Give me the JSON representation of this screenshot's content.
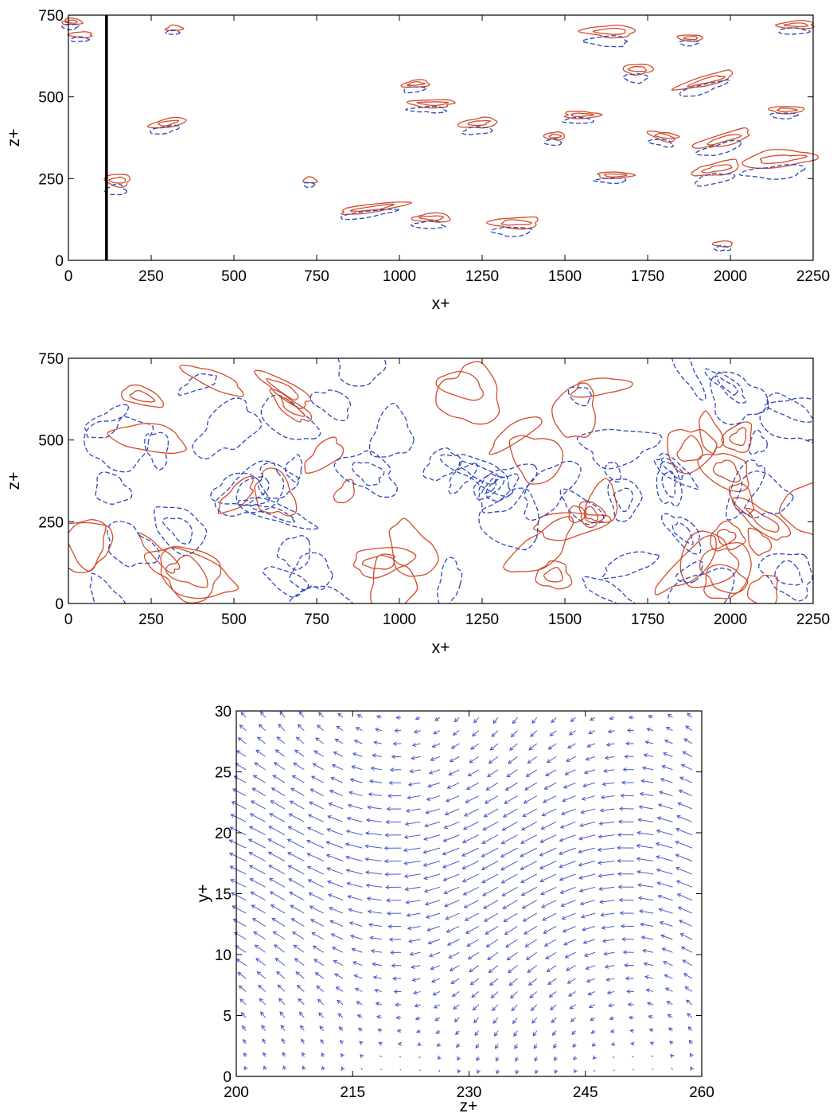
{
  "chart_data": [
    {
      "type": "contour",
      "panel": "top",
      "xlabel": "x+",
      "ylabel": "z+",
      "xlim": [
        0,
        2250
      ],
      "ylim": [
        0,
        750
      ],
      "xticks": [
        "0",
        "250",
        "500",
        "750",
        "1000",
        "1250",
        "1500",
        "1750",
        "2000",
        "2250"
      ],
      "yticks": [
        "0",
        "250",
        "500",
        "750"
      ],
      "series": [
        {
          "style": "solid",
          "color": "#d24b2a"
        },
        {
          "style": "dashed",
          "color": "#2b46b8"
        }
      ],
      "marker_line": {
        "x": 115,
        "color": "#000000"
      },
      "structures": [
        {
          "x": 10,
          "z": 730,
          "len": 60,
          "w": 10,
          "ang": 0
        },
        {
          "x": 40,
          "z": 690,
          "len": 70,
          "w": 8,
          "ang": 0
        },
        {
          "x": 150,
          "z": 245,
          "len": 80,
          "w": 28,
          "ang": 0
        },
        {
          "x": 300,
          "z": 420,
          "len": 110,
          "w": 16,
          "ang": 10
        },
        {
          "x": 320,
          "z": 710,
          "len": 50,
          "w": 6,
          "ang": 0
        },
        {
          "x": 730,
          "z": 245,
          "len": 40,
          "w": 8,
          "ang": 0
        },
        {
          "x": 920,
          "z": 160,
          "len": 210,
          "w": 14,
          "ang": 8
        },
        {
          "x": 1050,
          "z": 540,
          "len": 80,
          "w": 12,
          "ang": 5
        },
        {
          "x": 1100,
          "z": 480,
          "len": 140,
          "w": 14,
          "ang": 0
        },
        {
          "x": 1100,
          "z": 130,
          "len": 120,
          "w": 18,
          "ang": 0
        },
        {
          "x": 1240,
          "z": 420,
          "len": 110,
          "w": 20,
          "ang": 5
        },
        {
          "x": 1350,
          "z": 115,
          "len": 150,
          "w": 24,
          "ang": 0
        },
        {
          "x": 1470,
          "z": 380,
          "len": 60,
          "w": 14,
          "ang": 0
        },
        {
          "x": 1550,
          "z": 445,
          "len": 110,
          "w": 12,
          "ang": 0
        },
        {
          "x": 1640,
          "z": 700,
          "len": 150,
          "w": 28,
          "ang": 0
        },
        {
          "x": 1650,
          "z": 260,
          "len": 110,
          "w": 10,
          "ang": 0
        },
        {
          "x": 1720,
          "z": 585,
          "len": 90,
          "w": 24,
          "ang": 0
        },
        {
          "x": 1800,
          "z": 380,
          "len": 90,
          "w": 16,
          "ang": -10
        },
        {
          "x": 1880,
          "z": 680,
          "len": 70,
          "w": 10,
          "ang": 0
        },
        {
          "x": 1930,
          "z": 550,
          "len": 180,
          "w": 22,
          "ang": 15
        },
        {
          "x": 1980,
          "z": 370,
          "len": 170,
          "w": 26,
          "ang": 15
        },
        {
          "x": 1960,
          "z": 280,
          "len": 150,
          "w": 30,
          "ang": 10
        },
        {
          "x": 2150,
          "z": 310,
          "len": 220,
          "w": 40,
          "ang": 5
        },
        {
          "x": 2170,
          "z": 460,
          "len": 100,
          "w": 12,
          "ang": 0
        },
        {
          "x": 2200,
          "z": 720,
          "len": 110,
          "w": 14,
          "ang": 0
        },
        {
          "x": 1980,
          "z": 50,
          "len": 60,
          "w": 8,
          "ang": 0
        }
      ]
    },
    {
      "type": "contour",
      "panel": "middle",
      "xlabel": "x+",
      "ylabel": "z+",
      "xlim": [
        0,
        2250
      ],
      "ylim": [
        0,
        750
      ],
      "xticks": [
        "0",
        "250",
        "500",
        "750",
        "1000",
        "1250",
        "1500",
        "1750",
        "2000",
        "2250"
      ],
      "yticks": [
        "0",
        "250",
        "500",
        "750"
      ],
      "series": [
        {
          "style": "solid",
          "color": "#d24b2a"
        },
        {
          "style": "dashed",
          "color": "#2b46b8"
        }
      ]
    },
    {
      "type": "quiver",
      "panel": "bottom",
      "xlabel": "z+",
      "ylabel": "y+",
      "xlim": [
        200,
        260
      ],
      "ylim": [
        0,
        30
      ],
      "xticks": [
        "200",
        "215",
        "230",
        "245",
        "260"
      ],
      "yticks": [
        "0",
        "5",
        "10",
        "15",
        "20",
        "25",
        "30"
      ],
      "arrow_color": "#4a5bc8",
      "grid": {
        "nz": 24,
        "ny": 28
      }
    }
  ]
}
